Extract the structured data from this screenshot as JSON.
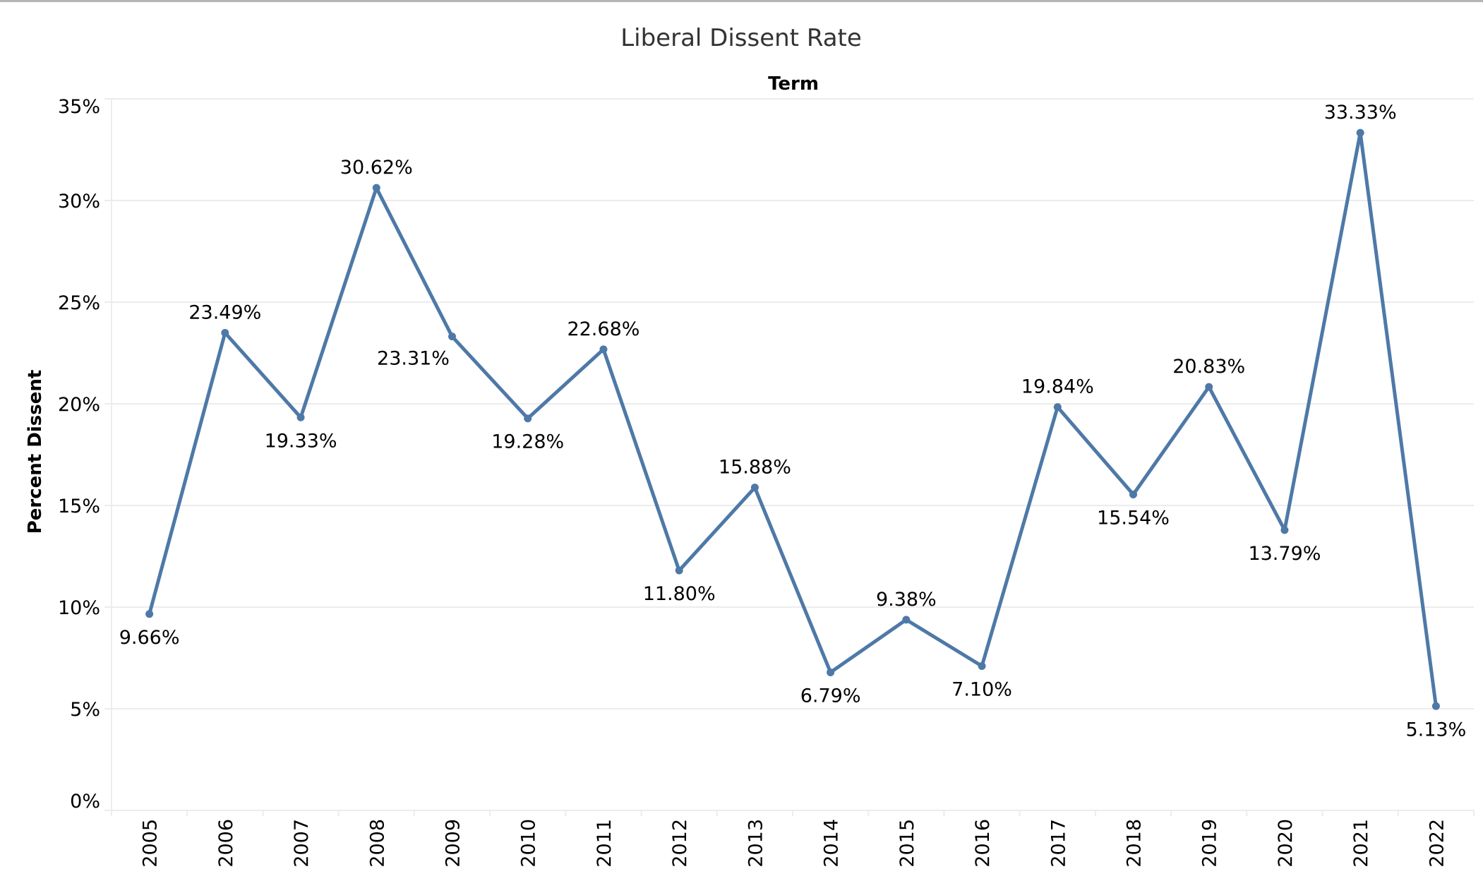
{
  "chart_data": {
    "type": "line",
    "title": "Liberal Dissent Rate",
    "column_header": "Term",
    "xlabel": "Term",
    "ylabel": "Percent Dissent",
    "ylim": [
      0,
      35
    ],
    "yticks": [
      0,
      5,
      10,
      15,
      20,
      25,
      30,
      35
    ],
    "ytick_labels": [
      "0%",
      "5%",
      "10%",
      "15%",
      "20%",
      "25%",
      "30%",
      "35%"
    ],
    "grid": true,
    "legend": "none",
    "categories": [
      "2005",
      "2006",
      "2007",
      "2008",
      "2009",
      "2010",
      "2011",
      "2012",
      "2013",
      "2014",
      "2015",
      "2016",
      "2017",
      "2018",
      "2019",
      "2020",
      "2021",
      "2022"
    ],
    "series": [
      {
        "name": "Percent Dissent",
        "color": "#4e79a7",
        "values": [
          9.66,
          23.49,
          19.33,
          30.62,
          23.31,
          19.28,
          22.68,
          11.8,
          15.88,
          6.79,
          9.38,
          7.1,
          19.84,
          15.54,
          20.83,
          13.79,
          33.33,
          5.13
        ],
        "labels": [
          "9.66%",
          "23.49%",
          "19.33%",
          "30.62%",
          "23.31%",
          "19.28%",
          "22.68%",
          "11.80%",
          "15.88%",
          "6.79%",
          "9.38%",
          "7.10%",
          "19.84%",
          "15.54%",
          "20.83%",
          "13.79%",
          "33.33%",
          "5.13%"
        ],
        "label_positions": [
          "below",
          "above",
          "below",
          "above",
          "below-left",
          "below",
          "above",
          "below",
          "above",
          "below",
          "above",
          "below",
          "above",
          "below",
          "above",
          "below",
          "above",
          "below"
        ]
      }
    ]
  }
}
